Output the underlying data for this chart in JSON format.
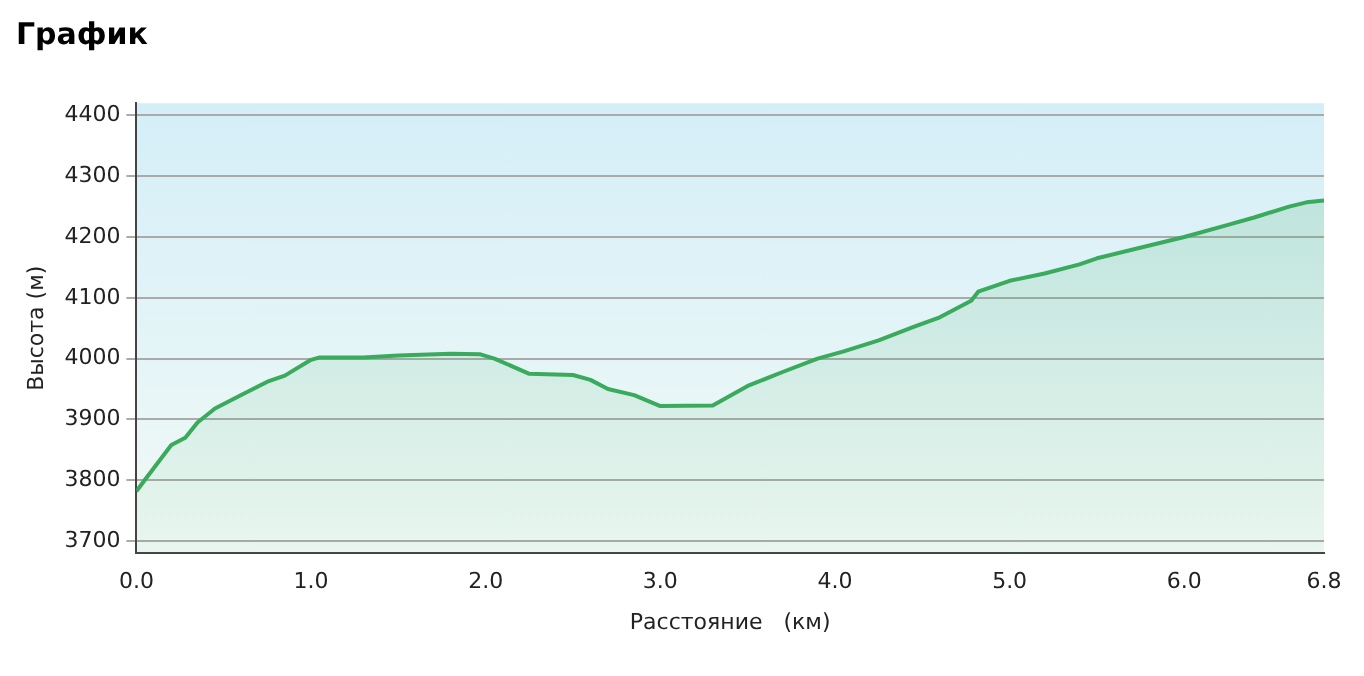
{
  "chart_data": {
    "type": "area",
    "title": "График",
    "xlabel": "Расстояние   (км)",
    "ylabel": "Высота (м)",
    "x": [
      0,
      0.1,
      0.2,
      0.28,
      0.35,
      0.45,
      0.6,
      0.75,
      0.85,
      1.0,
      1.05,
      1.3,
      1.5,
      1.8,
      1.97,
      2.05,
      2.25,
      2.5,
      2.6,
      2.7,
      2.85,
      3.0,
      3.3,
      3.5,
      3.7,
      3.9,
      4.05,
      4.25,
      4.45,
      4.6,
      4.78,
      4.82,
      5.0,
      5.2,
      5.4,
      5.5,
      5.8,
      6.0,
      6.25,
      6.4,
      6.6,
      6.7,
      6.8
    ],
    "series": [
      {
        "color": "#3aaa5c",
        "values": [
          3782,
          3820,
          3858,
          3870,
          3895,
          3918,
          3940,
          3962,
          3972,
          3998,
          4002,
          4002,
          4005,
          4008,
          4007,
          4000,
          3975,
          3973,
          3965,
          3950,
          3940,
          3922,
          3923,
          3955,
          3978,
          4000,
          4012,
          4030,
          4052,
          4068,
          4095,
          4110,
          4128,
          4140,
          4155,
          4165,
          4186,
          4200,
          4220,
          4232,
          4250,
          4257,
          4260
        ]
      }
    ],
    "xlim": [
      0,
      6.8
    ],
    "xticks": [
      {
        "value": 0,
        "label": "0.0"
      },
      {
        "value": 1,
        "label": "1.0"
      },
      {
        "value": 2,
        "label": "2.0"
      },
      {
        "value": 3,
        "label": "3.0"
      },
      {
        "value": 4,
        "label": "4.0"
      },
      {
        "value": 5,
        "label": "5.0"
      },
      {
        "value": 6,
        "label": "6.0"
      },
      6.8
    ],
    "ylim": [
      3680,
      4420
    ],
    "yticks": [
      3700,
      3800,
      3900,
      4000,
      4100,
      4200,
      4300,
      4400
    ],
    "grid": "y",
    "marker": "none",
    "line_style": "solid",
    "legend": false
  }
}
